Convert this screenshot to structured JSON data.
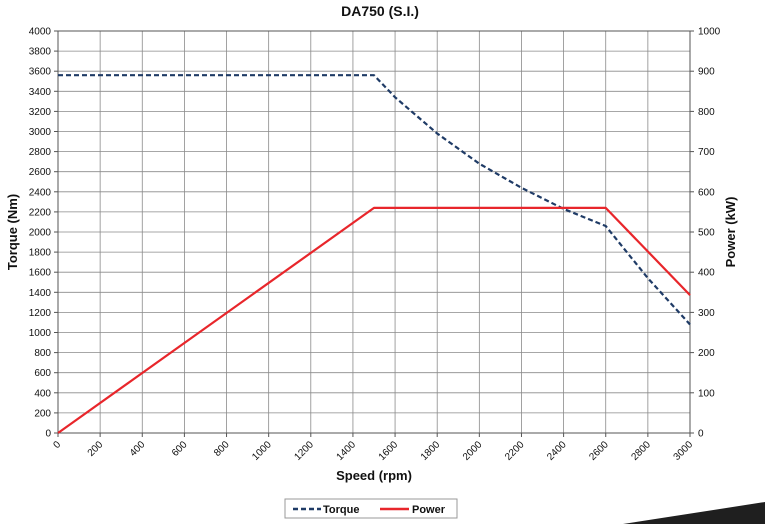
{
  "chart_data": {
    "type": "line",
    "title": "DA750 (S.I.)",
    "xlabel": "Speed (rpm)",
    "ylabel_left": "Torque (Nm)",
    "ylabel_right": "Power (kW)",
    "xlim": [
      0,
      3000
    ],
    "ylim_left": [
      0,
      4000
    ],
    "ylim_right": [
      0,
      1000
    ],
    "x_ticks": [
      0,
      200,
      400,
      600,
      800,
      1000,
      1200,
      1400,
      1600,
      1800,
      2000,
      2200,
      2400,
      2600,
      2800,
      3000
    ],
    "y_left_ticks": [
      0,
      200,
      400,
      600,
      800,
      1000,
      1200,
      1400,
      1600,
      1800,
      2000,
      2200,
      2400,
      2600,
      2800,
      3000,
      3200,
      3400,
      3600,
      3800,
      4000
    ],
    "y_right_ticks": [
      0,
      100,
      200,
      300,
      400,
      500,
      600,
      700,
      800,
      900,
      1000
    ],
    "grid": true,
    "legend_position": "bottom-center",
    "series": [
      {
        "name": "Torque",
        "axis": "left",
        "style": "dashed",
        "color": "#1f3b66",
        "x": [
          0,
          1500,
          1600,
          1800,
          2000,
          2200,
          2400,
          2600,
          2800,
          3000
        ],
        "y": [
          3560,
          3560,
          3340,
          2980,
          2680,
          2440,
          2230,
          2060,
          1540,
          1080
        ]
      },
      {
        "name": "Power",
        "axis": "right",
        "style": "solid",
        "color": "#e8262b",
        "x": [
          0,
          1500,
          2600,
          3000
        ],
        "y": [
          0,
          560,
          560,
          343
        ]
      }
    ]
  }
}
